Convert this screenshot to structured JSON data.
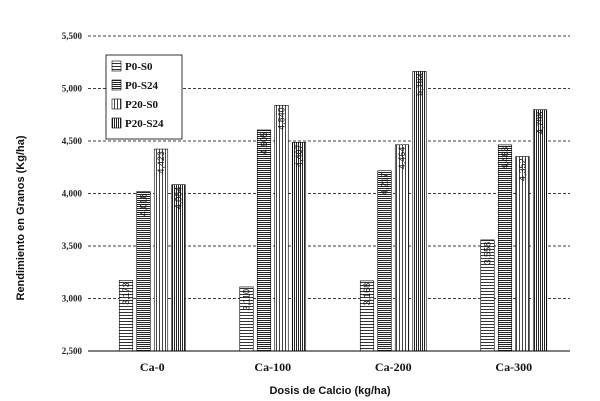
{
  "chart_data": {
    "type": "bar",
    "xlabel": "Dosis de Calcio (kg/ha)",
    "ylabel": "Rendimiento en Granos (Kg/ha)",
    "ylim": [
      2500,
      5500
    ],
    "yticks": [
      "2,500",
      "3,000",
      "3,500",
      "4,000",
      "4,500",
      "5,000",
      "5,500"
    ],
    "grid": true,
    "legend_position": "top-left",
    "categories": [
      "Ca-0",
      "Ca-100",
      "Ca-200",
      "Ca-300"
    ],
    "series": [
      {
        "name": "P0-S0",
        "values": [
          3173,
          3110,
          3168,
          3558
        ],
        "labels": [
          "3,173",
          "3,110",
          "3,168",
          "3,558"
        ],
        "pattern": "horizontal-lines"
      },
      {
        "name": "P0-S24",
        "values": [
          4018,
          4605,
          4217,
          4463
        ],
        "labels": [
          "4,018",
          "4,605",
          "4,217",
          "4,463"
        ],
        "pattern": "dense-horizontal-lines"
      },
      {
        "name": "P20-S0",
        "values": [
          4423,
          4840,
          4464,
          4352
        ],
        "labels": [
          "4,423",
          "4,840",
          "4,464",
          "4,352"
        ],
        "pattern": "vertical-lines"
      },
      {
        "name": "P20-S24",
        "values": [
          4084,
          4487,
          5163,
          4798
        ],
        "labels": [
          "4,084",
          "4,487",
          "5,163",
          "4,798"
        ],
        "pattern": "dense-vertical-lines"
      }
    ]
  }
}
